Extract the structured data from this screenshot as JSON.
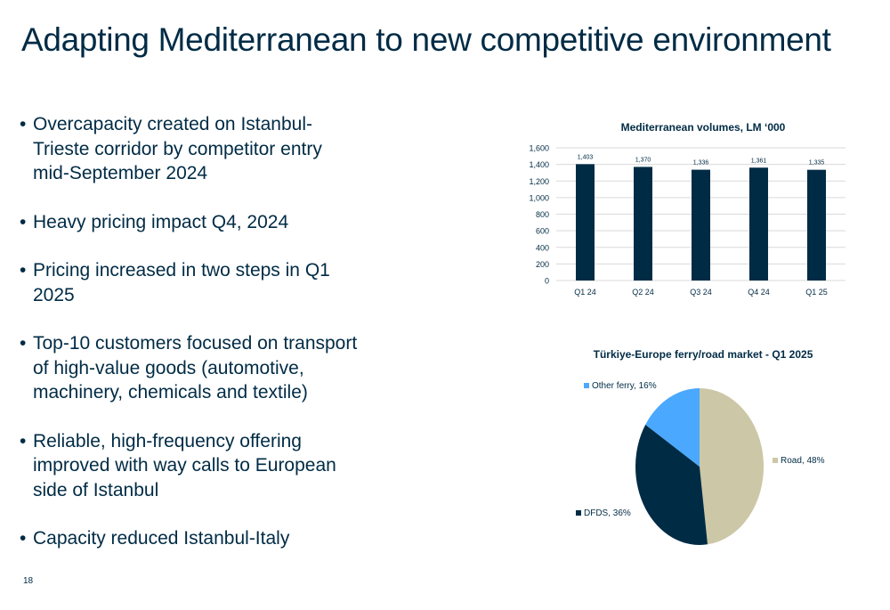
{
  "slide": {
    "title": "Adapting Mediterranean to new competitive environment",
    "page_number": "18",
    "bullets": [
      "Overcapacity created on Istanbul-Trieste corridor by competitor entry mid-September 2024",
      "Heavy pricing impact Q4, 2024",
      "Pricing increased in two steps in Q1 2025",
      "Top-10 customers focused on transport of high-value goods (automotive, machinery, chemicals and textile)",
      "Reliable, high-frequency offering improved with way calls to European side of Istanbul",
      "Capacity reduced Istanbul-Italy"
    ]
  },
  "chart_data": [
    {
      "type": "bar",
      "title": "Mediterranean volumes, LM ‘000",
      "categories": [
        "Q1 24",
        "Q2 24",
        "Q3 24",
        "Q4 24",
        "Q1 25"
      ],
      "values": [
        1403,
        1370,
        1336,
        1361,
        1335
      ],
      "data_labels": [
        "1,403",
        "1,370",
        "1,336",
        "1,361",
        "1,335"
      ],
      "ylim": [
        0,
        1600
      ],
      "yticks": [
        0,
        200,
        400,
        600,
        800,
        1000,
        1200,
        1400,
        1600
      ],
      "ytick_labels": [
        "0",
        "200",
        "400",
        "600",
        "800",
        "1,000",
        "1,200",
        "1,400",
        "1,600"
      ],
      "grid": true,
      "bar_color": "#002b45"
    },
    {
      "type": "pie",
      "title": "Türkiye-Europe ferry/road market - Q1 2025",
      "slices": [
        {
          "label": "Road, 48%",
          "value": 48,
          "color": "#ccc7a6"
        },
        {
          "label": "DFDS, 36%",
          "value": 36,
          "color": "#002b45"
        },
        {
          "label": "Other ferry, 16%",
          "value": 16,
          "color": "#4aa8ff"
        }
      ]
    }
  ]
}
